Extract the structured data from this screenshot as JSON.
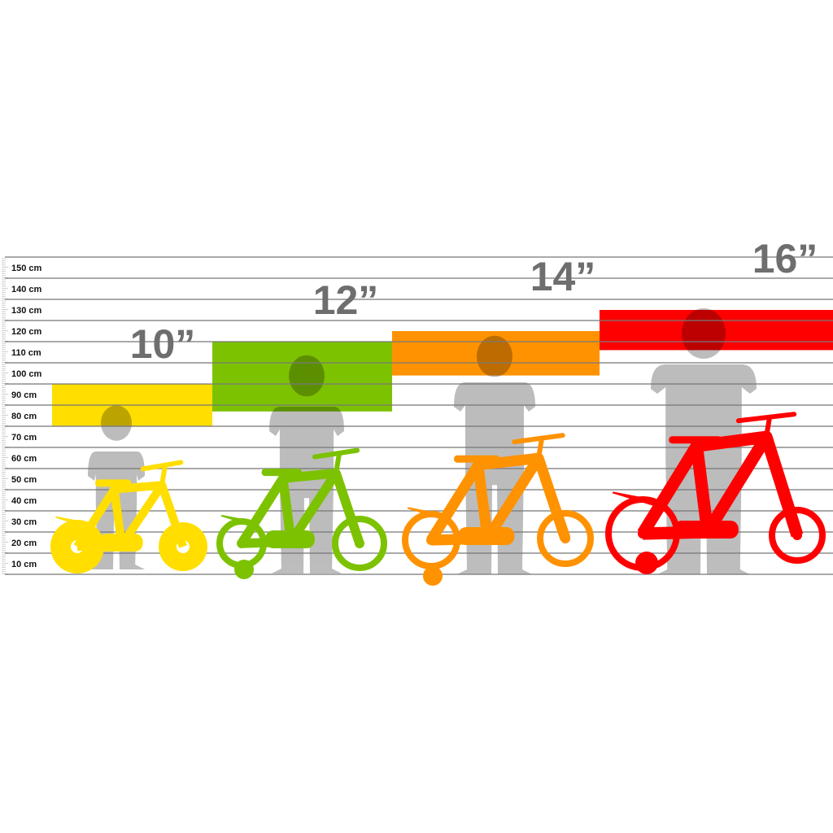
{
  "chart_data": {
    "type": "bar",
    "orientation": "floating-range",
    "y_unit": "cm",
    "ylim": [
      0,
      150
    ],
    "y_tick_labels": [
      "150 cm",
      "140 cm",
      "130 cm",
      "120 cm",
      "110 cm",
      "100 cm",
      "90 cm",
      "80 cm",
      "70 cm",
      "60 cm",
      "50 cm",
      "40 cm",
      "30 cm",
      "20 cm",
      "10 cm"
    ],
    "grid": true,
    "categories": [
      "10”",
      "12”",
      "14”",
      "16”"
    ],
    "ranges": [
      {
        "label": "10”",
        "min": 70,
        "max": 90,
        "color": "#ffde00"
      },
      {
        "label": "12”",
        "min": 77,
        "max": 110,
        "color": "#7dc200"
      },
      {
        "label": "14”",
        "min": 94,
        "max": 115,
        "color": "#ff9200"
      },
      {
        "label": "16”",
        "min": 106,
        "max": 125,
        "color": "#ff0000"
      }
    ],
    "silhouette_color": "#b9b9b9"
  }
}
